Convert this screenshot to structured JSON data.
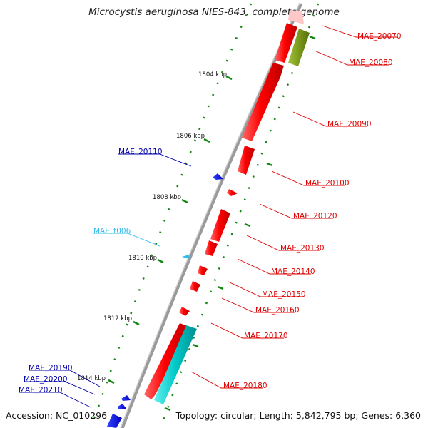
{
  "title": "Microcystis aeruginosa NIES-843, complete genome",
  "accession": "Accession: NC_010296",
  "summary": "Topology: circular; Length: 5,842,795 bp; Genes: 6,360",
  "colors": {
    "cds": "#ff0000",
    "trna": "#33bbee",
    "reverse_gene": "#0000ee",
    "rrna_like": "#00cccc",
    "other": "#7a9a1a",
    "backbone": "#8c8c8c",
    "tick": "#118811"
  },
  "ticks": [
    {
      "label": "1804 kbp"
    },
    {
      "label": "1806 kbp"
    },
    {
      "label": "1808 kbp"
    },
    {
      "label": "1810 kbp"
    },
    {
      "label": "1812 kbp"
    },
    {
      "label": "1814 kbp"
    }
  ],
  "genes": [
    {
      "id": "MAE_20070",
      "color": "#ff0000",
      "side": "right"
    },
    {
      "id": "MAE_20080",
      "color": "#ff0000",
      "side": "right"
    },
    {
      "id": "MAE_20090",
      "color": "#ff0000",
      "side": "right"
    },
    {
      "id": "MAE_20100",
      "color": "#ff0000",
      "side": "right"
    },
    {
      "id": "MAE_20120",
      "color": "#ff0000",
      "side": "right"
    },
    {
      "id": "MAE_20130",
      "color": "#ff0000",
      "side": "right"
    },
    {
      "id": "MAE_20140",
      "color": "#ff0000",
      "side": "right"
    },
    {
      "id": "MAE_20150",
      "color": "#ff0000",
      "side": "right"
    },
    {
      "id": "MAE_20160",
      "color": "#ff0000",
      "side": "right"
    },
    {
      "id": "MAE_20170",
      "color": "#ff0000",
      "side": "right"
    },
    {
      "id": "MAE_20180",
      "color": "#ff0000",
      "side": "right"
    },
    {
      "id": "MAE_20110",
      "color": "#0000aa",
      "side": "left"
    },
    {
      "id": "MAE_t006",
      "color": "#33bbee",
      "side": "left"
    },
    {
      "id": "MAE_20190",
      "color": "#0000aa",
      "side": "left"
    },
    {
      "id": "MAE_20200",
      "color": "#0000aa",
      "side": "left"
    },
    {
      "id": "MAE_20210",
      "color": "#0000aa",
      "side": "left"
    }
  ]
}
